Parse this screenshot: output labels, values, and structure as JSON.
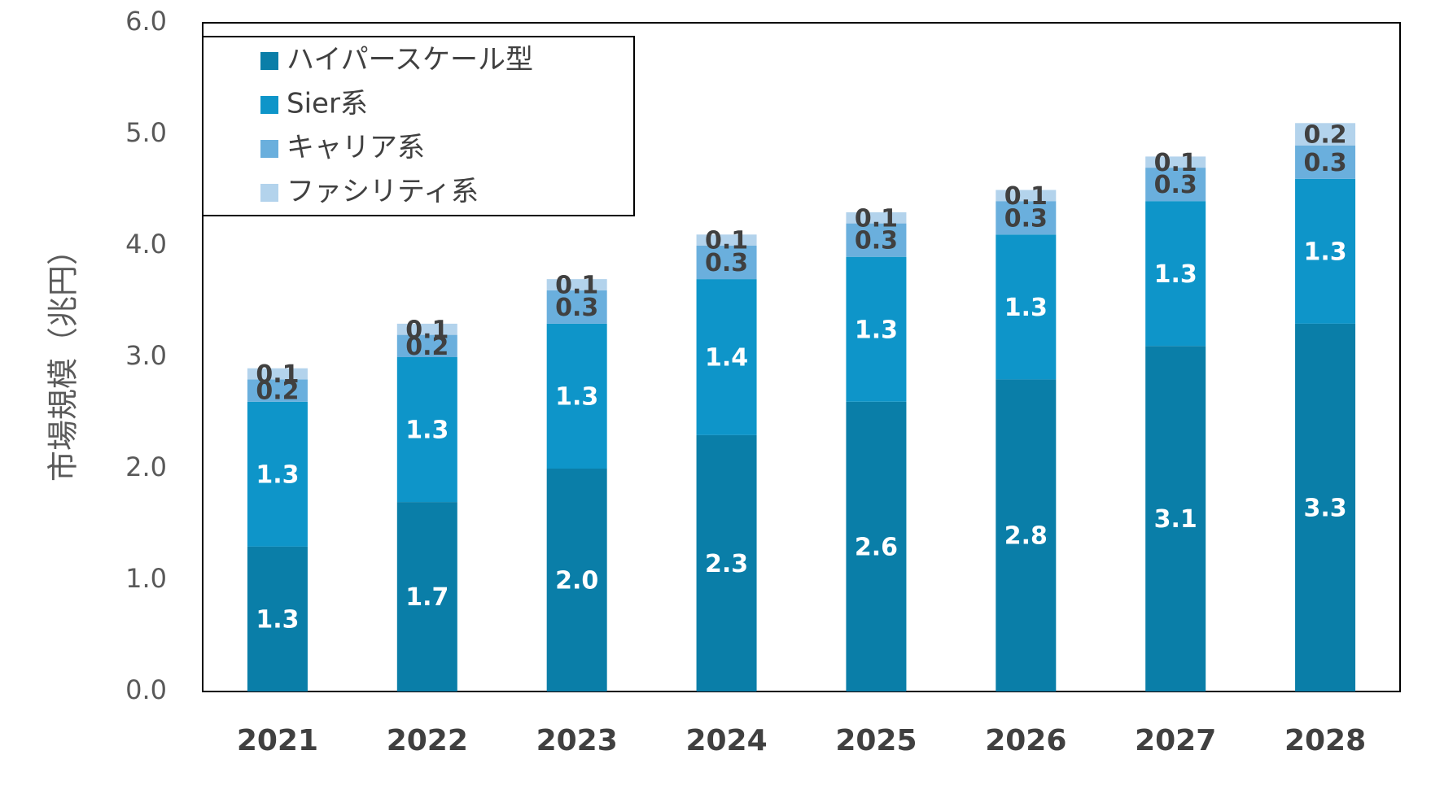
{
  "chart_data": {
    "type": "bar",
    "stacked": true,
    "categories": [
      "2021",
      "2022",
      "2023",
      "2024",
      "2025",
      "2026",
      "2027",
      "2028"
    ],
    "series": [
      {
        "name": "ハイパースケール型",
        "values": [
          1.3,
          1.7,
          2.0,
          2.3,
          2.6,
          2.8,
          3.1,
          3.3
        ],
        "color": "#0a7ea8",
        "label_color": "#ffffff"
      },
      {
        "name": "Sier系",
        "values": [
          1.3,
          1.3,
          1.3,
          1.4,
          1.3,
          1.3,
          1.3,
          1.3
        ],
        "color": "#0e95c9",
        "label_color": "#ffffff"
      },
      {
        "name": "キャリア系",
        "values": [
          0.2,
          0.2,
          0.3,
          0.3,
          0.3,
          0.3,
          0.3,
          0.3
        ],
        "color": "#6aafdd",
        "label_color": "#404040"
      },
      {
        "name": "ファシリティ系",
        "values": [
          0.1,
          0.1,
          0.1,
          0.1,
          0.1,
          0.1,
          0.1,
          0.2
        ],
        "color": "#b3d3ec",
        "label_color": "#404040"
      }
    ],
    "ylabel": "市場規模（兆円）",
    "xlabel": "",
    "ylim": [
      0,
      6
    ],
    "yticks": [
      "0.0",
      "1.0",
      "2.0",
      "3.0",
      "4.0",
      "5.0",
      "6.0"
    ],
    "grid": false,
    "legend_position": "top-left"
  }
}
